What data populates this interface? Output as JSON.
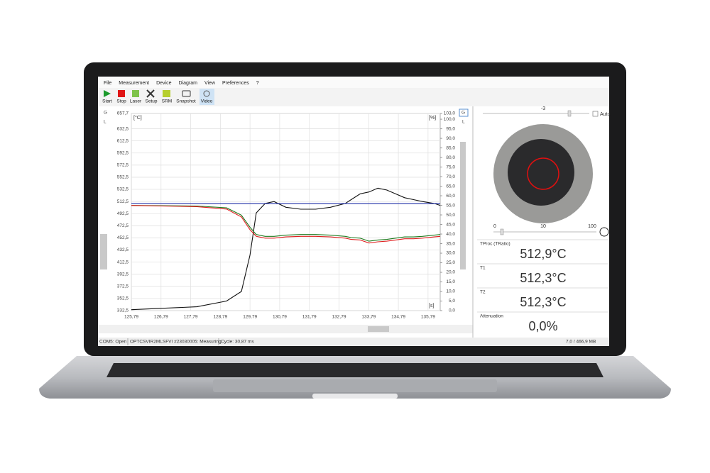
{
  "menu": [
    "File",
    "Measurement",
    "Device",
    "Diagram",
    "View",
    "Preferences",
    "?"
  ],
  "toolbar": [
    "Start",
    "Stop",
    "Laser",
    "Setup",
    "SRM",
    "Snapshot",
    "Video"
  ],
  "axis_buttons": [
    "G",
    "L"
  ],
  "chart_data": {
    "type": "line",
    "y_unit": "[°C]",
    "y2_unit": "[%]",
    "x_unit": "[s]",
    "x": [
      125.79,
      128.0,
      129.0,
      129.5,
      129.79,
      130.0,
      130.3,
      130.6,
      131.0,
      131.5,
      132.0,
      132.5,
      133.0,
      133.2,
      133.5,
      133.8,
      134.1,
      134.4,
      134.7,
      135.0,
      135.3,
      135.6,
      136.0,
      136.2
    ],
    "xlim": [
      125.79,
      136.2
    ],
    "xticks": [
      {
        "value": 125.79,
        "label": "125,79"
      },
      {
        "value": 126.79,
        "label": "126,79"
      },
      {
        "value": 127.79,
        "label": "127,79"
      },
      {
        "value": 128.79,
        "label": "128,79"
      },
      {
        "value": 129.79,
        "label": "129,79"
      },
      {
        "value": 130.79,
        "label": "130,79"
      },
      {
        "value": 131.79,
        "label": "131,79"
      },
      {
        "value": 132.79,
        "label": "132,79"
      },
      {
        "value": 133.79,
        "label": "133,79"
      },
      {
        "value": 134.79,
        "label": "134,79"
      },
      {
        "value": 135.79,
        "label": "135,79"
      }
    ],
    "ylim": [
      332.5,
      657.7
    ],
    "yticks": [
      {
        "value": 657.7,
        "label": "657,7"
      },
      {
        "value": 632.5,
        "label": "632,5"
      },
      {
        "value": 612.5,
        "label": "612,5"
      },
      {
        "value": 592.5,
        "label": "592,5"
      },
      {
        "value": 572.5,
        "label": "572,5"
      },
      {
        "value": 552.5,
        "label": "552,5"
      },
      {
        "value": 532.5,
        "label": "532,5"
      },
      {
        "value": 512.5,
        "label": "512,5"
      },
      {
        "value": 492.5,
        "label": "492,5"
      },
      {
        "value": 472.5,
        "label": "472,5"
      },
      {
        "value": 452.5,
        "label": "452,5"
      },
      {
        "value": 432.5,
        "label": "432,5"
      },
      {
        "value": 412.5,
        "label": "412,5"
      },
      {
        "value": 392.5,
        "label": "392,5"
      },
      {
        "value": 372.5,
        "label": "372,5"
      },
      {
        "value": 352.5,
        "label": "352,5"
      },
      {
        "value": 332.5,
        "label": "332,5"
      }
    ],
    "y2lim": [
      0,
      103
    ],
    "y2ticks": [
      {
        "value": 103,
        "label": "103,0"
      },
      {
        "value": 100,
        "label": "100,0"
      },
      {
        "value": 95,
        "label": "95,0"
      },
      {
        "value": 90,
        "label": "90,0"
      },
      {
        "value": 85,
        "label": "85,0"
      },
      {
        "value": 80,
        "label": "80,0"
      },
      {
        "value": 75,
        "label": "75,0"
      },
      {
        "value": 70,
        "label": "70,0"
      },
      {
        "value": 65,
        "label": "65,0"
      },
      {
        "value": 60,
        "label": "60,0"
      },
      {
        "value": 55,
        "label": "55,0"
      },
      {
        "value": 50,
        "label": "50,0"
      },
      {
        "value": 45,
        "label": "45,0"
      },
      {
        "value": 40,
        "label": "40,0"
      },
      {
        "value": 35,
        "label": "35,0"
      },
      {
        "value": 30,
        "label": "30,0"
      },
      {
        "value": 25,
        "label": "25,0"
      },
      {
        "value": 20,
        "label": "20,0"
      },
      {
        "value": 15,
        "label": "15,0"
      },
      {
        "value": 10,
        "label": "10,0"
      },
      {
        "value": 5,
        "label": "5,0"
      },
      {
        "value": 0,
        "label": "0,0"
      }
    ],
    "grid": true,
    "series": [
      {
        "color": "#111111",
        "axis": "y2",
        "values": [
          0.5,
          2,
          5,
          10,
          29,
          51,
          56,
          57,
          54,
          53,
          53,
          54,
          56,
          58,
          61,
          62,
          64,
          63,
          61,
          59,
          58,
          57,
          56,
          55
        ]
      },
      {
        "color": "#1f2fa8",
        "values": [
          509,
          509,
          509,
          509,
          509,
          509,
          509,
          509,
          509,
          509,
          509,
          509,
          509,
          509,
          509,
          509,
          509,
          509,
          509,
          509,
          509,
          509,
          509,
          509
        ]
      },
      {
        "color": "#1e7b1e",
        "values": [
          506,
          505,
          502,
          490,
          470,
          458,
          455,
          455,
          457,
          458,
          458,
          457,
          455,
          453,
          452,
          447,
          449,
          450,
          452,
          454,
          454,
          455,
          457,
          458
        ]
      },
      {
        "color": "#e02020",
        "values": [
          506,
          504,
          500,
          487,
          466,
          455,
          452,
          452,
          454,
          455,
          455,
          454,
          452,
          450,
          449,
          444,
          446,
          447,
          449,
          451,
          451,
          452,
          454,
          455
        ]
      }
    ]
  },
  "side_panel": {
    "brightness": "-3",
    "auto": "Auto",
    "scale": [
      "0",
      "10",
      "100"
    ],
    "readouts": [
      {
        "label": "TProc (TRatio)",
        "value": "512,9°C",
        "color": "#1f2fa8"
      },
      {
        "label": "T1",
        "value": "512,3°C",
        "color": "#1e7b1e"
      },
      {
        "label": "T2",
        "value": "512,3°C",
        "color": "#e02020"
      },
      {
        "label": "Attenuation",
        "value": "0,0%",
        "color": "#222222"
      }
    ]
  },
  "status_bar": [
    "COM5: Open",
    "OPTCSVIR2MLSFVI #23030005: Measuring",
    "Cycle: 30,87 ms",
    "7,0 / 466,9 MB"
  ]
}
